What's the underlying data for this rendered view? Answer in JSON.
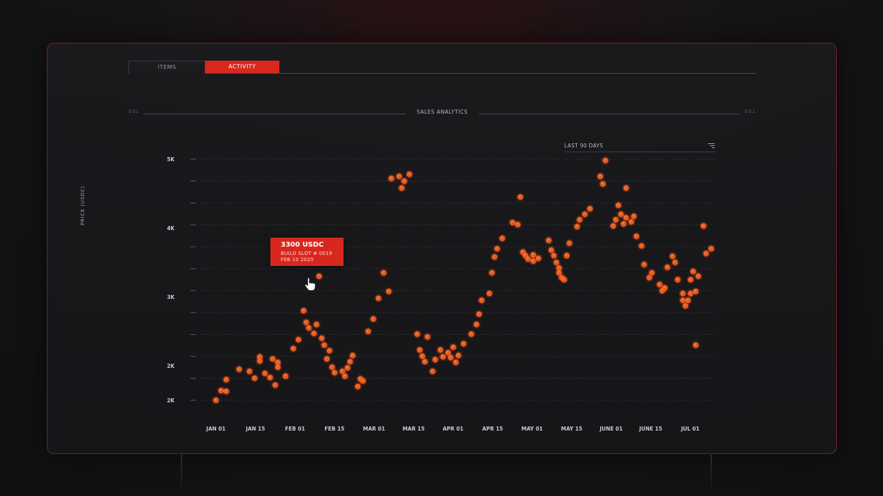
{
  "tabs": [
    {
      "label": "ITEMS"
    },
    {
      "label": "ACTIVITY"
    }
  ],
  "section": {
    "number_left": "001",
    "title": "SALES ANALYTICS",
    "number_right": "001"
  },
  "filter": {
    "label": "LAST 90 DAYS",
    "icon": "filter-list-icon"
  },
  "tooltip": {
    "price": "3300 USDC",
    "line1": "BUILD SLOT # 0019",
    "line2": "FEB 10 2025"
  },
  "colors": {
    "accent": "#d8281e",
    "point": "#ff5a1a",
    "panel_border": "#7a2222"
  },
  "chart_data": {
    "type": "scatter",
    "ylabel": "PRICE (USDC)",
    "x_ticks": [
      "JAN 01",
      "JAN 15",
      "FEB 01",
      "FEB 15",
      "MAR 01",
      "MAR 15",
      "APR 01",
      "APR 15",
      "MAY 01",
      "MAY 15",
      "JUNE 01",
      "JUNE 15",
      "JUL 01"
    ],
    "y_tick_labels": [
      {
        "value": 5000,
        "label": "5K"
      },
      {
        "value": 4000,
        "label": "4K"
      },
      {
        "value": 3000,
        "label": "3K"
      },
      {
        "value": 2000,
        "label": "2K"
      },
      {
        "value": 1500,
        "label": "2K"
      }
    ],
    "ylim": [
      1500,
      5000
    ],
    "grid": true,
    "points": [
      [
        "2025-01-01",
        1500
      ],
      [
        "2025-01-03",
        1640
      ],
      [
        "2025-01-05",
        1800
      ],
      [
        "2025-01-05",
        1630
      ],
      [
        "2025-01-10",
        1950
      ],
      [
        "2025-01-14",
        1920
      ],
      [
        "2025-01-16",
        1820
      ],
      [
        "2025-01-18",
        2070
      ],
      [
        "2025-01-18",
        2130
      ],
      [
        "2025-01-20",
        1890
      ],
      [
        "2025-01-22",
        1830
      ],
      [
        "2025-01-24",
        1720
      ],
      [
        "2025-01-23",
        2100
      ],
      [
        "2025-01-25",
        2050
      ],
      [
        "2025-01-25",
        1980
      ],
      [
        "2025-01-28",
        1850
      ],
      [
        "2025-01-31",
        2250
      ],
      [
        "2025-02-02",
        2380
      ],
      [
        "2025-02-04",
        2800
      ],
      [
        "2025-02-05",
        2630
      ],
      [
        "2025-02-06",
        2550
      ],
      [
        "2025-02-08",
        2470
      ],
      [
        "2025-02-09",
        2600
      ],
      [
        "2025-02-10",
        3300
      ],
      [
        "2025-02-11",
        2400
      ],
      [
        "2025-02-12",
        2300
      ],
      [
        "2025-02-13",
        2100
      ],
      [
        "2025-02-14",
        2220
      ],
      [
        "2025-02-15",
        1980
      ],
      [
        "2025-02-16",
        1900
      ],
      [
        "2025-02-19",
        1920
      ],
      [
        "2025-02-20",
        1850
      ],
      [
        "2025-02-21",
        1970
      ],
      [
        "2025-02-22",
        2060
      ],
      [
        "2025-02-23",
        2150
      ],
      [
        "2025-02-25",
        1700
      ],
      [
        "2025-02-26",
        1810
      ],
      [
        "2025-02-27",
        1780
      ],
      [
        "2025-03-01",
        2500
      ],
      [
        "2025-03-03",
        2680
      ],
      [
        "2025-03-05",
        2980
      ],
      [
        "2025-03-07",
        3350
      ],
      [
        "2025-03-09",
        3080
      ],
      [
        "2025-03-10",
        4720
      ],
      [
        "2025-03-13",
        4750
      ],
      [
        "2025-03-14",
        4580
      ],
      [
        "2025-03-15",
        4680
      ],
      [
        "2025-03-17",
        4780
      ],
      [
        "2025-03-20",
        2460
      ],
      [
        "2025-03-21",
        2230
      ],
      [
        "2025-03-22",
        2140
      ],
      [
        "2025-03-23",
        2060
      ],
      [
        "2025-03-24",
        2420
      ],
      [
        "2025-03-26",
        1920
      ],
      [
        "2025-03-27",
        2090
      ],
      [
        "2025-03-29",
        2230
      ],
      [
        "2025-03-30",
        2130
      ],
      [
        "2025-04-01",
        2190
      ],
      [
        "2025-04-02",
        2120
      ],
      [
        "2025-04-03",
        2270
      ],
      [
        "2025-04-04",
        2050
      ],
      [
        "2025-04-05",
        2150
      ],
      [
        "2025-04-07",
        2320
      ],
      [
        "2025-04-10",
        2460
      ],
      [
        "2025-04-12",
        2600
      ],
      [
        "2025-04-13",
        2750
      ],
      [
        "2025-04-14",
        2950
      ],
      [
        "2025-04-17",
        3050
      ],
      [
        "2025-04-18",
        3350
      ],
      [
        "2025-04-19",
        3580
      ],
      [
        "2025-04-20",
        3700
      ],
      [
        "2025-04-22",
        3850
      ],
      [
        "2025-04-26",
        4080
      ],
      [
        "2025-04-28",
        4050
      ],
      [
        "2025-04-29",
        4450
      ],
      [
        "2025-04-30",
        3650
      ],
      [
        "2025-05-01",
        3600
      ],
      [
        "2025-05-02",
        3550
      ],
      [
        "2025-05-04",
        3520
      ],
      [
        "2025-05-04",
        3610
      ],
      [
        "2025-05-06",
        3560
      ],
      [
        "2025-05-10",
        3820
      ],
      [
        "2025-05-11",
        3680
      ],
      [
        "2025-05-12",
        3600
      ],
      [
        "2025-05-13",
        3500
      ],
      [
        "2025-05-14",
        3420
      ],
      [
        "2025-05-14",
        3350
      ],
      [
        "2025-05-15",
        3280
      ],
      [
        "2025-05-16",
        3250
      ],
      [
        "2025-05-17",
        3600
      ],
      [
        "2025-05-18",
        3780
      ],
      [
        "2025-05-21",
        4020
      ],
      [
        "2025-05-22",
        4120
      ],
      [
        "2025-05-24",
        4200
      ],
      [
        "2025-05-26",
        4280
      ],
      [
        "2025-05-30",
        4750
      ],
      [
        "2025-05-31",
        4640
      ],
      [
        "2025-06-01",
        4980
      ],
      [
        "2025-06-04",
        4030
      ],
      [
        "2025-06-05",
        4120
      ],
      [
        "2025-06-06",
        4330
      ],
      [
        "2025-06-07",
        4200
      ],
      [
        "2025-06-08",
        4060
      ],
      [
        "2025-06-09",
        4150
      ],
      [
        "2025-06-09",
        4580
      ],
      [
        "2025-06-11",
        4090
      ],
      [
        "2025-06-12",
        4170
      ],
      [
        "2025-06-13",
        3880
      ],
      [
        "2025-06-15",
        3740
      ],
      [
        "2025-06-16",
        3470
      ],
      [
        "2025-06-18",
        3280
      ],
      [
        "2025-06-19",
        3350
      ],
      [
        "2025-06-22",
        3180
      ],
      [
        "2025-06-23",
        3090
      ],
      [
        "2025-06-24",
        3130
      ],
      [
        "2025-06-25",
        3430
      ],
      [
        "2025-06-27",
        3590
      ],
      [
        "2025-06-28",
        3500
      ],
      [
        "2025-06-29",
        3250
      ],
      [
        "2025-07-01",
        2950
      ],
      [
        "2025-07-01",
        3050
      ],
      [
        "2025-07-02",
        2870
      ],
      [
        "2025-07-03",
        2950
      ],
      [
        "2025-07-04",
        3050
      ],
      [
        "2025-07-04",
        3250
      ],
      [
        "2025-07-05",
        3370
      ],
      [
        "2025-07-06",
        3080
      ],
      [
        "2025-07-06",
        2300
      ],
      [
        "2025-07-07",
        3300
      ],
      [
        "2025-07-09",
        4030
      ],
      [
        "2025-07-10",
        3630
      ],
      [
        "2025-07-12",
        3700
      ]
    ]
  }
}
